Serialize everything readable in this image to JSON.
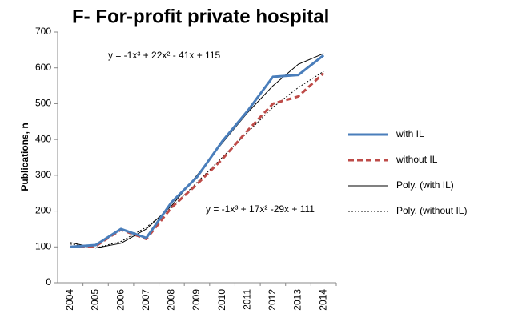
{
  "chart_data": {
    "type": "line",
    "title": "F- For-profit private hospital",
    "y_label": "Publications, n",
    "annotations": [
      "y = -1x³ + 22x² - 41x + 115",
      "y = -1x³ + 17x² -29x + 111"
    ],
    "categories": [
      "2004",
      "2005",
      "2006",
      "2007",
      "2008",
      "2009",
      "2010",
      "2011",
      "2012",
      "2013",
      "2014"
    ],
    "series": [
      {
        "name": "with IL",
        "color": "#4a7ebb",
        "line_width": 3,
        "dash": "none",
        "values": [
          100,
          105,
          150,
          125,
          225,
          295,
          395,
          480,
          575,
          580,
          635
        ]
      },
      {
        "name": "without IL",
        "color": "#be4b48",
        "line_width": 3,
        "dash": "7,4",
        "values": [
          100,
          102,
          148,
          122,
          210,
          275,
          345,
          425,
          500,
          520,
          585
        ]
      },
      {
        "name": "Poly. (with IL)",
        "color": "#000000",
        "line_width": 1,
        "dash": "none",
        "values": [
          112,
          97,
          110,
          150,
          215,
          300,
          390,
          475,
          550,
          610,
          640
        ]
      },
      {
        "name": "Poly. (without IL)",
        "color": "#000000",
        "line_width": 1,
        "dash": "2,2",
        "values": [
          108,
          97,
          115,
          155,
          210,
          280,
          350,
          420,
          490,
          545,
          590
        ]
      }
    ],
    "ylim": [
      0,
      700
    ],
    "yticks": [
      0,
      100,
      200,
      300,
      400,
      500,
      600,
      700
    ],
    "grid": false,
    "legend": "right"
  }
}
